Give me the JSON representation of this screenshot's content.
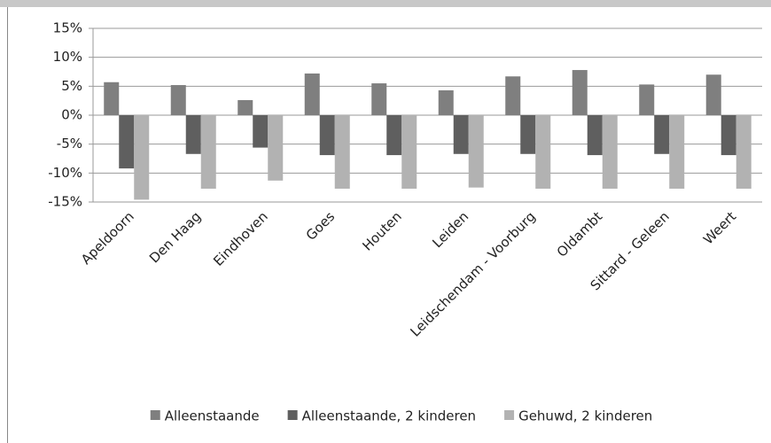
{
  "chart_data": {
    "type": "bar",
    "categories": [
      "Apeldoorn",
      "Den Haag",
      "Eindhoven",
      "Goes",
      "Houten",
      "Leiden",
      "Leidschendam - Voorburg",
      "Oldambt",
      "Sittard - Geleen",
      "Weert"
    ],
    "series": [
      {
        "name": "Alleenstaande",
        "color": "#7f7f7f",
        "values": [
          5.7,
          5.2,
          2.6,
          7.2,
          5.5,
          4.3,
          6.7,
          7.8,
          5.3,
          7.0
        ]
      },
      {
        "name": "Alleenstaande, 2 kinderen",
        "color": "#5f5f5f",
        "values": [
          -9.2,
          -6.7,
          -5.6,
          -6.9,
          -6.9,
          -6.7,
          -6.7,
          -6.9,
          -6.7,
          -6.9
        ]
      },
      {
        "name": "Gehuwd, 2 kinderen",
        "color": "#b2b2b2",
        "values": [
          -14.6,
          -12.7,
          -11.3,
          -12.7,
          -12.7,
          -12.5,
          -12.7,
          -12.7,
          -12.7,
          -12.7
        ]
      }
    ],
    "ylim": [
      -15,
      15
    ],
    "yticks": [
      {
        "value": -15,
        "label": "-15%"
      },
      {
        "value": -10,
        "label": "-10%"
      },
      {
        "value": -5,
        "label": "-5%"
      },
      {
        "value": 0,
        "label": "0%"
      },
      {
        "value": 5,
        "label": "5%"
      },
      {
        "value": 10,
        "label": "10%"
      },
      {
        "value": 15,
        "label": "15%"
      }
    ],
    "grid": true
  }
}
